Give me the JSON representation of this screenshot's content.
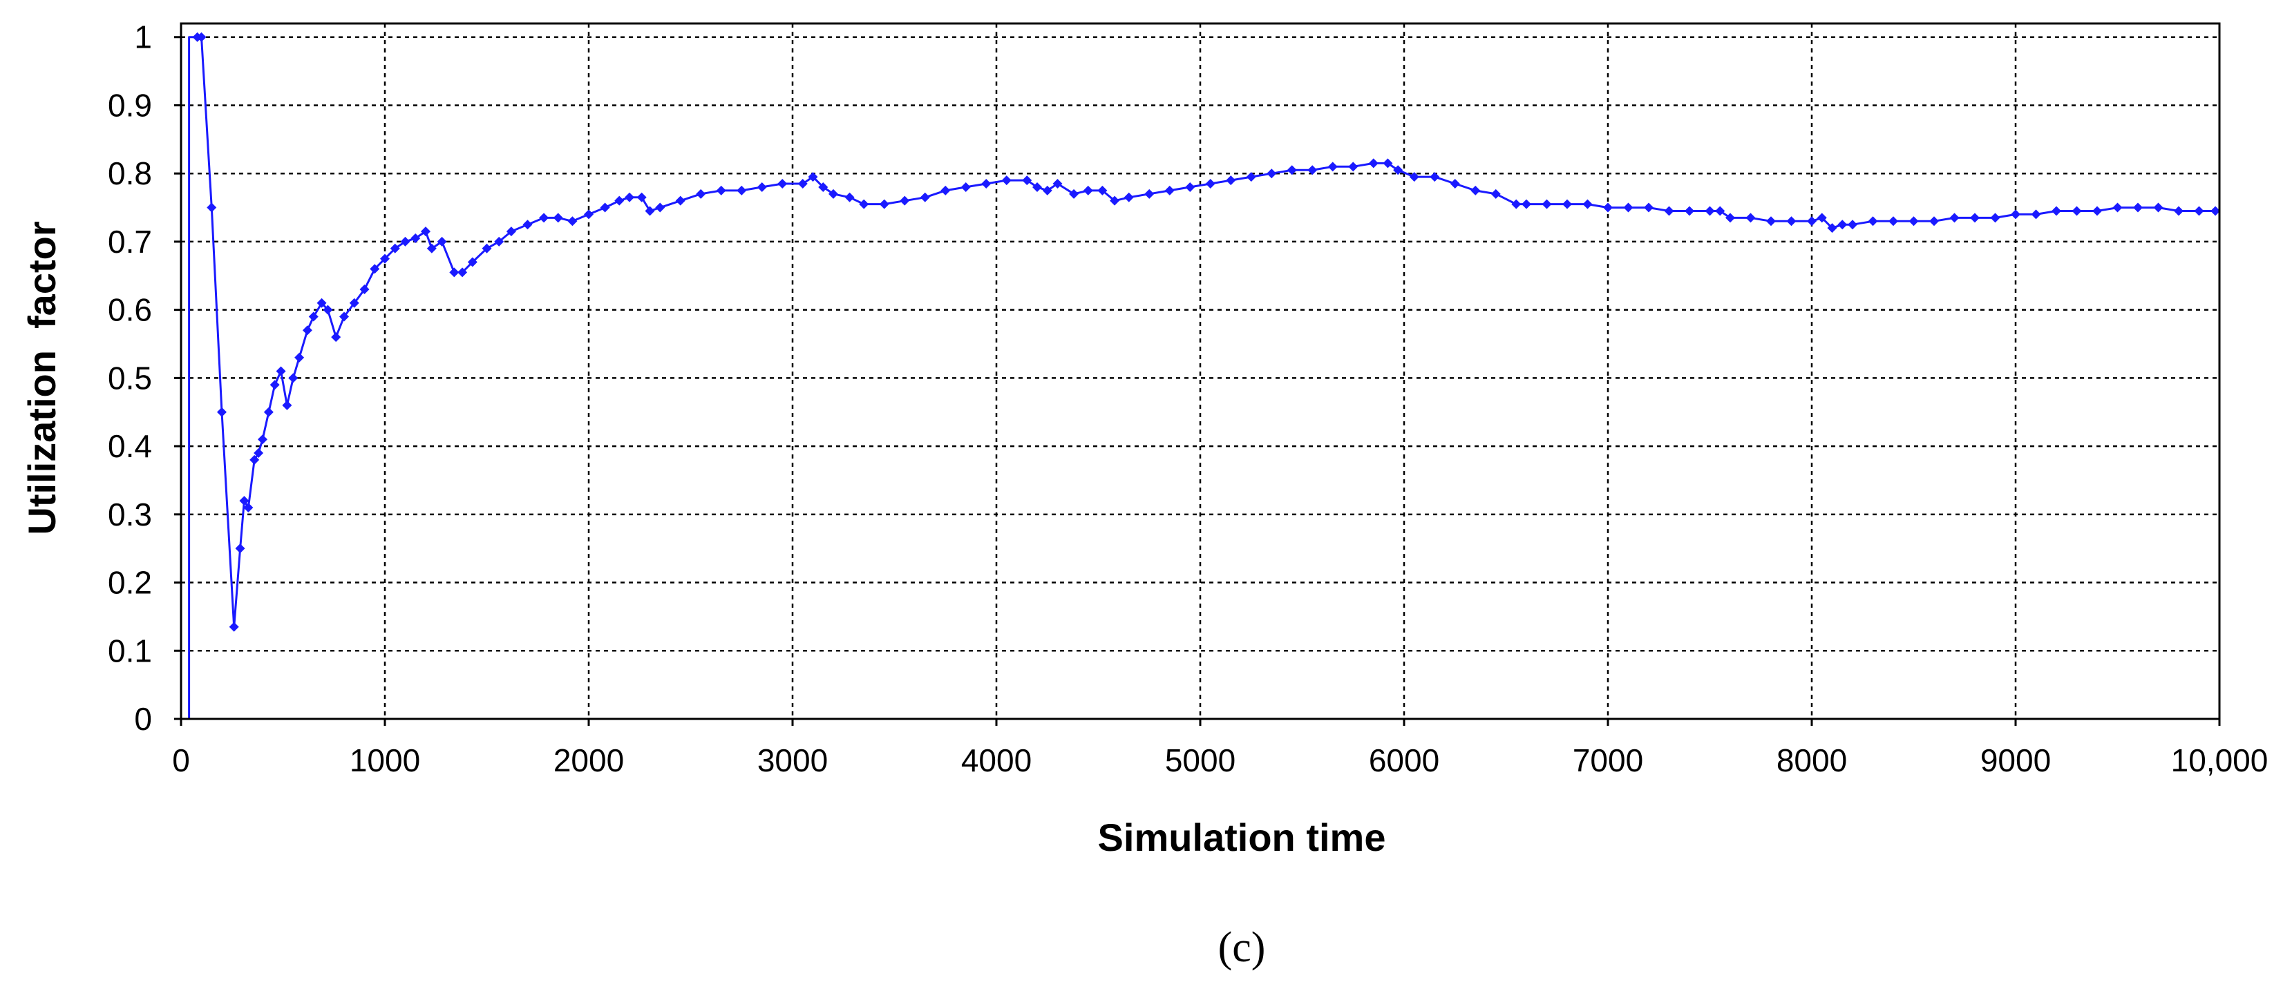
{
  "chart_data": {
    "type": "line",
    "title": "",
    "panel_label": "(c)",
    "xlabel": "Simulation time",
    "ylabel": "Utilization  factor",
    "xlim": [
      0,
      10000
    ],
    "ylim": [
      0,
      1.02
    ],
    "x_ticks": [
      0,
      1000,
      2000,
      3000,
      4000,
      5000,
      6000,
      7000,
      8000,
      9000,
      10000
    ],
    "x_tick_labels": [
      "0",
      "1000",
      "2000",
      "3000",
      "4000",
      "5000",
      "6000",
      "7000",
      "8000",
      "9000",
      "10,000"
    ],
    "y_ticks": [
      0,
      0.1,
      0.2,
      0.3,
      0.4,
      0.5,
      0.6,
      0.7,
      0.8,
      0.9,
      1
    ],
    "y_tick_labels": [
      "0",
      "0.1",
      "0.2",
      "0.3",
      "0.4",
      "0.5",
      "0.6",
      "0.7",
      "0.8",
      "0.9",
      "1"
    ],
    "grid": true,
    "series_color": "#1a1aff",
    "series": [
      {
        "name": "Utilization factor",
        "x": [
          80,
          100,
          150,
          200,
          260,
          290,
          310,
          330,
          360,
          380,
          400,
          430,
          460,
          490,
          520,
          550,
          580,
          620,
          650,
          690,
          720,
          760,
          800,
          850,
          900,
          950,
          1000,
          1050,
          1100,
          1150,
          1200,
          1230,
          1280,
          1340,
          1380,
          1430,
          1500,
          1560,
          1620,
          1700,
          1780,
          1850,
          1920,
          2000,
          2080,
          2150,
          2200,
          2260,
          2300,
          2350,
          2450,
          2550,
          2650,
          2750,
          2850,
          2950,
          3050,
          3100,
          3150,
          3200,
          3280,
          3350,
          3450,
          3550,
          3650,
          3750,
          3850,
          3950,
          4050,
          4150,
          4200,
          4250,
          4300,
          4380,
          4450,
          4520,
          4580,
          4650,
          4750,
          4850,
          4950,
          5050,
          5150,
          5250,
          5350,
          5450,
          5550,
          5650,
          5750,
          5850,
          5920,
          5970,
          6050,
          6150,
          6250,
          6350,
          6450,
          6550,
          6600,
          6700,
          6800,
          6900,
          7000,
          7100,
          7200,
          7300,
          7400,
          7500,
          7550,
          7600,
          7700,
          7800,
          7900,
          8000,
          8050,
          8100,
          8150,
          8200,
          8300,
          8400,
          8500,
          8600,
          8700,
          8800,
          8900,
          9000,
          9100,
          9200,
          9300,
          9400,
          9500,
          9600,
          9700,
          9800,
          9900,
          9980
        ],
        "y": [
          1.0,
          1.0,
          0.75,
          0.45,
          0.135,
          0.25,
          0.32,
          0.31,
          0.38,
          0.39,
          0.41,
          0.45,
          0.49,
          0.51,
          0.46,
          0.5,
          0.53,
          0.57,
          0.59,
          0.61,
          0.6,
          0.56,
          0.59,
          0.61,
          0.63,
          0.66,
          0.675,
          0.69,
          0.7,
          0.705,
          0.715,
          0.69,
          0.7,
          0.655,
          0.655,
          0.67,
          0.69,
          0.7,
          0.715,
          0.725,
          0.735,
          0.735,
          0.73,
          0.74,
          0.75,
          0.76,
          0.765,
          0.765,
          0.745,
          0.75,
          0.76,
          0.77,
          0.775,
          0.775,
          0.78,
          0.785,
          0.785,
          0.795,
          0.78,
          0.77,
          0.765,
          0.755,
          0.755,
          0.76,
          0.765,
          0.775,
          0.78,
          0.785,
          0.79,
          0.79,
          0.78,
          0.775,
          0.785,
          0.77,
          0.775,
          0.775,
          0.76,
          0.765,
          0.77,
          0.775,
          0.78,
          0.785,
          0.79,
          0.795,
          0.8,
          0.805,
          0.805,
          0.81,
          0.81,
          0.815,
          0.815,
          0.805,
          0.795,
          0.795,
          0.785,
          0.775,
          0.77,
          0.755,
          0.755,
          0.755,
          0.755,
          0.755,
          0.75,
          0.75,
          0.75,
          0.745,
          0.745,
          0.745,
          0.745,
          0.735,
          0.735,
          0.73,
          0.73,
          0.73,
          0.735,
          0.72,
          0.725,
          0.725,
          0.73,
          0.73,
          0.73,
          0.73,
          0.735,
          0.735,
          0.735,
          0.74,
          0.74,
          0.745,
          0.745,
          0.745,
          0.75,
          0.75,
          0.75,
          0.745,
          0.745,
          0.745
        ]
      }
    ]
  }
}
